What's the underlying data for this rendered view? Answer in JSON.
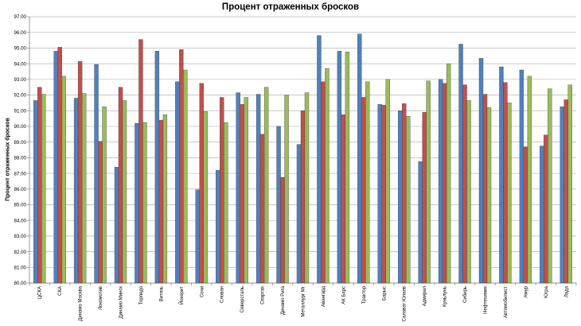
{
  "chart_data": {
    "type": "bar",
    "title": "Процент отраженных бросков",
    "xlabel": "",
    "ylabel": "Процент отраженных бросков",
    "ylim": [
      80,
      97
    ],
    "ytick_step": 1,
    "ytick_labels": [
      "80.00",
      "81.00",
      "82.00",
      "83.00",
      "84.00",
      "85.00",
      "86.00",
      "87.00",
      "88.00",
      "89.00",
      "90.00",
      "91.00",
      "92.00",
      "93.00",
      "94.00",
      "95.00",
      "96.00",
      "97.00"
    ],
    "grid": true,
    "legend": "none",
    "categories": [
      "ЦСКА",
      "СКА",
      "Динамо Москва",
      "Локомотив",
      "Динамо Минск",
      "Торпедо",
      "Витязь",
      "Йокерит",
      "Сочи",
      "Слован",
      "Северсталь",
      "Спартак",
      "Динамо Рига",
      "Металлург Мг",
      "Авангард",
      "АК Барс",
      "Трактор",
      "Барыс",
      "Салават Юлаев",
      "Адмирал",
      "Куньлунь",
      "Сибирь",
      "Нефтехимик",
      "Автомобилист",
      "Амур",
      "Югра",
      "Лада"
    ],
    "series": [
      {
        "color": "#4f81bd",
        "values": [
          91.65,
          94.8,
          91.8,
          93.95,
          87.4,
          90.2,
          94.8,
          92.85,
          85.95,
          87.2,
          92.15,
          92.05,
          90.0,
          88.85,
          95.8,
          94.8,
          95.9,
          91.4,
          91.0,
          87.75,
          93.0,
          95.25,
          94.35,
          93.8,
          93.6,
          88.75,
          91.25
        ]
      },
      {
        "color": "#c0504d",
        "values": [
          92.5,
          95.05,
          94.15,
          89.05,
          92.5,
          95.55,
          90.4,
          94.9,
          92.75,
          91.85,
          91.4,
          89.5,
          86.75,
          91.0,
          92.85,
          90.75,
          91.85,
          91.35,
          91.45,
          90.9,
          92.75,
          92.65,
          92.05,
          92.8,
          88.7,
          89.45,
          91.7
        ]
      },
      {
        "color": "#9bbb59",
        "values": [
          92.05,
          93.2,
          92.1,
          91.25,
          91.65,
          90.25,
          90.75,
          93.6,
          90.95,
          90.25,
          91.85,
          92.5,
          92.0,
          92.15,
          93.7,
          94.75,
          92.85,
          93.0,
          90.65,
          92.9,
          94.0,
          91.65,
          91.2,
          91.5,
          93.2,
          92.4,
          92.65
        ]
      }
    ]
  }
}
